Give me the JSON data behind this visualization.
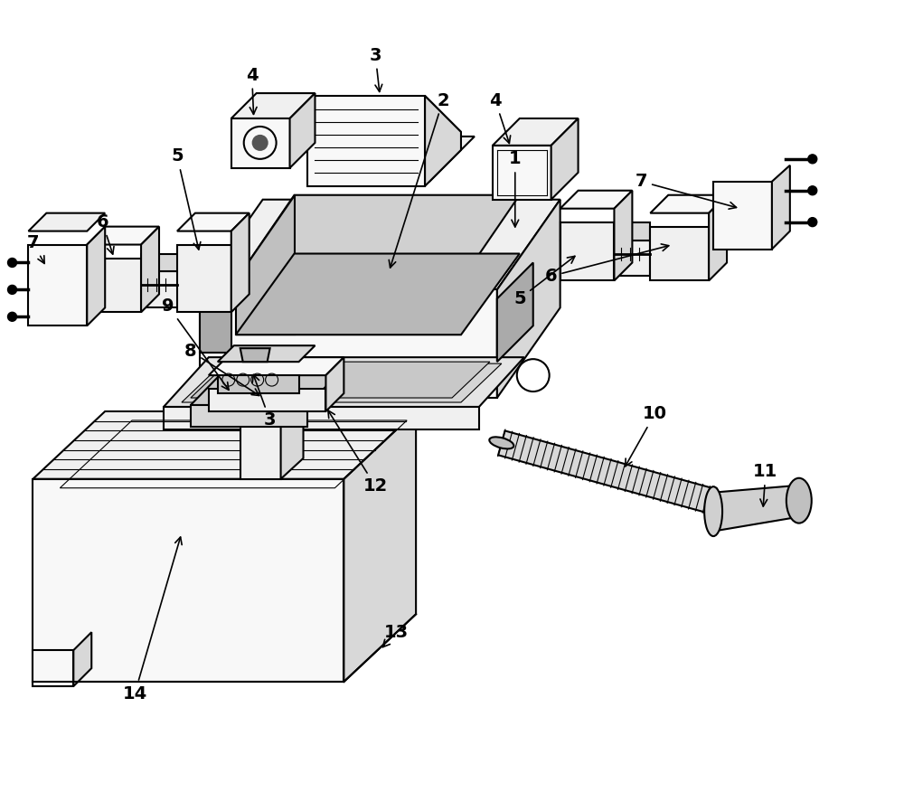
{
  "background_color": "#ffffff",
  "line_color": "#000000",
  "line_width": 1.5,
  "figsize": [
    10.0,
    8.97
  ],
  "dpi": 100,
  "gray_light": "#f0f0f0",
  "gray_mid": "#d8d8d8",
  "gray_dark": "#aaaaaa",
  "gray_very_light": "#f8f8f8"
}
